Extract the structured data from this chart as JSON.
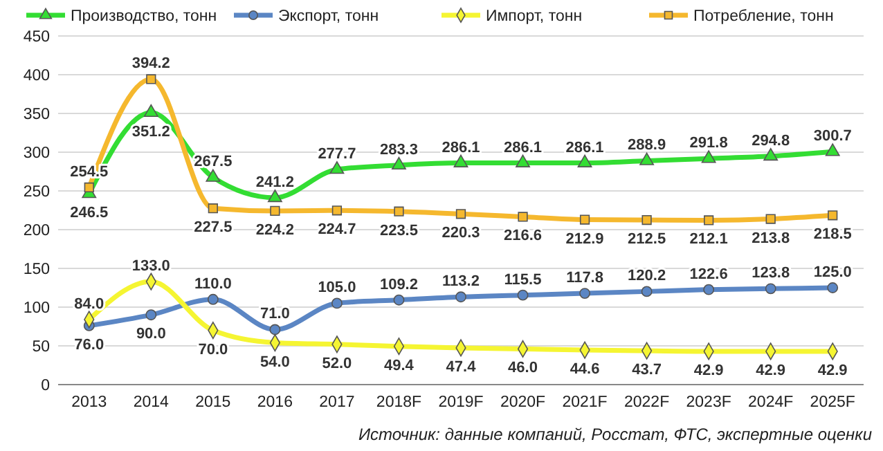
{
  "chart_data": {
    "type": "line",
    "categories": [
      "2013",
      "2014",
      "2015",
      "2016",
      "2017",
      "2018F",
      "2019F",
      "2020F",
      "2021F",
      "2022F",
      "2023F",
      "2024F",
      "2025F"
    ],
    "series": [
      {
        "name": "Производство, тонн",
        "color": "#33dd33",
        "marker": "triangle",
        "values": [
          246.5,
          351.2,
          267.5,
          241.2,
          277.7,
          283.3,
          286.1,
          286.1,
          286.1,
          288.9,
          291.8,
          294.8,
          300.7
        ],
        "value_labels": [
          "246.5",
          "351.2",
          "267.5",
          "241.2",
          "277.7",
          "283.3",
          "286.1",
          "286.1",
          "286.1",
          "288.9",
          "291.8",
          "294.8",
          "300.7"
        ]
      },
      {
        "name": "Экспорт, тонн",
        "color": "#5b86c4",
        "marker": "circle",
        "values": [
          76.0,
          90.0,
          110.0,
          71.0,
          105.0,
          109.2,
          113.2,
          115.5,
          117.8,
          120.2,
          122.6,
          123.8,
          125.0
        ],
        "value_labels": [
          "76.0",
          "90.0",
          "110.0",
          "71.0",
          "105.0",
          "109.2",
          "113.2",
          "115.5",
          "117.8",
          "120.2",
          "122.6",
          "123.8",
          "125.0"
        ]
      },
      {
        "name": "Импорт, тонн",
        "color": "#f5f532",
        "marker": "diamond",
        "values": [
          84.0,
          133.0,
          70.0,
          54.0,
          52.0,
          49.4,
          47.4,
          46.0,
          44.6,
          43.7,
          42.9,
          42.9,
          42.9
        ],
        "value_labels": [
          "84.0",
          "133.0",
          "70.0",
          "54.0",
          "52.0",
          "49.4",
          "47.4",
          "46.0",
          "44.6",
          "43.7",
          "42.9",
          "42.9",
          "42.9"
        ]
      },
      {
        "name": "Потребление, тонн",
        "color": "#f5b82e",
        "marker": "square",
        "values": [
          254.5,
          394.2,
          227.5,
          224.2,
          224.7,
          223.5,
          220.3,
          216.6,
          212.9,
          212.5,
          212.1,
          213.8,
          218.5
        ],
        "value_labels": [
          "254.5",
          "394.2",
          "227.5",
          "224.2",
          "224.7",
          "223.5",
          "220.3",
          "216.6",
          "212.9",
          "212.5",
          "212.1",
          "213.8",
          "218.5"
        ]
      }
    ],
    "ylim": [
      0,
      450
    ],
    "yticks": [
      0,
      50,
      100,
      150,
      200,
      250,
      300,
      350,
      400,
      450
    ],
    "grid": "y",
    "legend": "top",
    "annotations": [
      "Источник: данные компаний, Росстат, ФТС, экспертные оценки"
    ]
  }
}
